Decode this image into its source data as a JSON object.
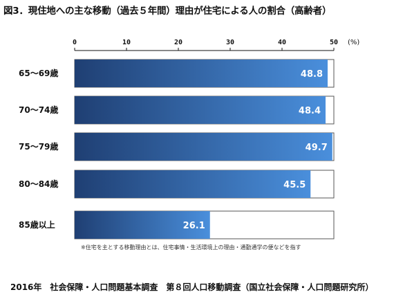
{
  "title": "図3．現住地への主な移動（過去５年間）理由が住宅による人の割合（高齢者）",
  "footnote": "※住宅を主とする移動理由とは、住宅事情・生活環境上の理由・通勤通学の便などを指す",
  "source": "2016年　社会保障・人口問題基本調査　第８回人口移動調査（国立社会保障・人口問題研究所）",
  "colors": {
    "bar_dark": "#1f3f73",
    "bar_light": "#4a8fdc",
    "frame": "#555555"
  },
  "chart_data": {
    "type": "bar",
    "orientation": "horizontal",
    "categories": [
      "65～69歳",
      "70～74歳",
      "75～79歳",
      "80～84歳",
      "85歳以上"
    ],
    "values": [
      48.8,
      48.4,
      49.7,
      45.5,
      26.1
    ],
    "value_labels": [
      "48.8",
      "48.4",
      "49.7",
      "45.5",
      "26.1"
    ],
    "xlim": [
      0,
      50
    ],
    "ticks": [
      0,
      10,
      20,
      30,
      40,
      50
    ],
    "tick_labels": [
      "0",
      "10",
      "20",
      "30",
      "40",
      "50"
    ],
    "unit": "(%)",
    "axis_position": "top",
    "grid": false,
    "legend": false
  }
}
